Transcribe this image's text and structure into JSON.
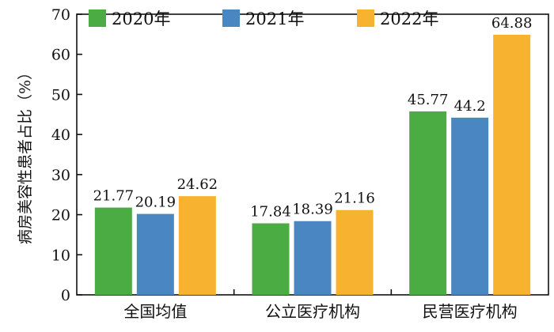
{
  "chart_data": {
    "type": "bar",
    "ylabel": "病房美容性患者占比（%）",
    "categories": [
      "全国均值",
      "公立医疗机构",
      "民营医疗机构"
    ],
    "series": [
      {
        "name": "2020年",
        "color": "#4aac43",
        "values": [
          21.77,
          17.84,
          45.77
        ]
      },
      {
        "name": "2021年",
        "color": "#4a86c2",
        "values": [
          20.19,
          18.39,
          44.2
        ]
      },
      {
        "name": "2022年",
        "color": "#f7b330",
        "values": [
          24.62,
          21.16,
          64.88
        ]
      }
    ],
    "ylim": [
      0,
      70
    ],
    "yticks": [
      0,
      10,
      20,
      30,
      40,
      50,
      60,
      70
    ],
    "legend_position": "top",
    "grid": false
  }
}
